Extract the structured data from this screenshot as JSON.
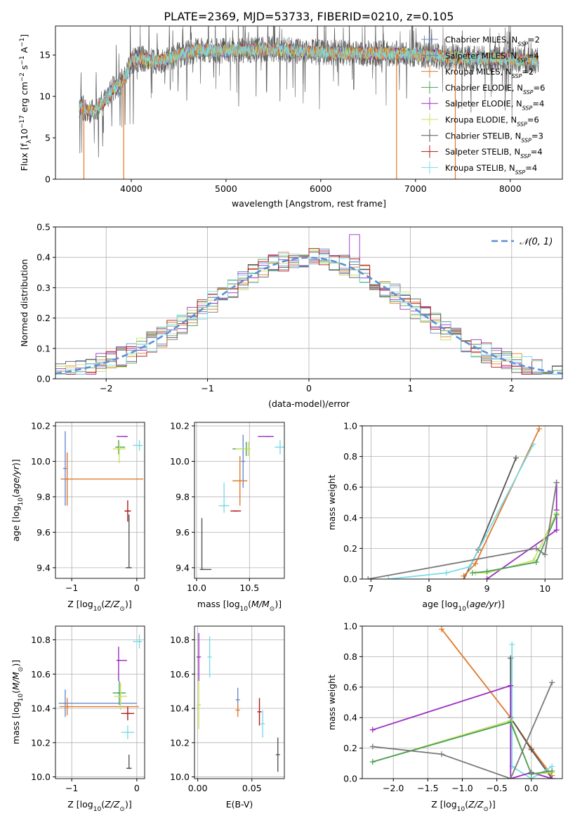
{
  "figure_title": "PLATE=2369, MJD=53733, FIBERID=0210, z=0.105",
  "models": [
    {
      "imf": "Chabrier",
      "lib": "MILES",
      "nssp": "2",
      "color": "#6a8ad0"
    },
    {
      "imf": "Salpeter",
      "lib": "MILES",
      "nssp": "4",
      "color": "#7a7a7a"
    },
    {
      "imf": "Kroupa",
      "lib": "MILES",
      "nssp": "2",
      "color": "#e07a2c"
    },
    {
      "imf": "Chabrier",
      "lib": "ELODIE",
      "nssp": "6",
      "color": "#4aa05a"
    },
    {
      "imf": "Salpeter",
      "lib": "ELODIE",
      "nssp": "4",
      "color": "#9a2cc0"
    },
    {
      "imf": "Kroupa",
      "lib": "ELODIE",
      "nssp": "6",
      "color": "#c9e060"
    },
    {
      "imf": "Chabrier",
      "lib": "STELIB",
      "nssp": "3",
      "color": "#555555"
    },
    {
      "imf": "Salpeter",
      "lib": "STELIB",
      "nssp": "4",
      "color": "#b01818"
    },
    {
      "imf": "Kroupa",
      "lib": "STELIB",
      "nssp": "4",
      "color": "#7adbe6"
    }
  ],
  "chart_data": [
    {
      "id": "spectrum",
      "type": "line",
      "xlabel": "wavelength [Angstrom, rest frame]",
      "ylabel": "Flux [f_λ 10^-17 erg cm^-2 s^-1 A^-1]",
      "xlim": [
        3200,
        8550
      ],
      "ylim": [
        0,
        18.5
      ],
      "xticks": [
        4000,
        5000,
        6000,
        7000,
        8000
      ],
      "yticks": [
        0,
        5,
        10,
        15
      ],
      "legend": "right",
      "continuum": {
        "x": [
          3450,
          3600,
          3700,
          3800,
          3900,
          3950,
          4000,
          4100,
          4200,
          4300,
          4500,
          4700,
          5000,
          5500,
          6000,
          6500,
          7000,
          7500,
          8000,
          8300
        ],
        "y": [
          8.8,
          8.2,
          9.2,
          10.8,
          11.8,
          12.6,
          14.3,
          14.6,
          14.3,
          14.2,
          15.0,
          15.6,
          15.5,
          15.7,
          15.3,
          15.2,
          15.1,
          14.6,
          14.5,
          14.3
        ]
      },
      "drops_to_zero": [
        {
          "series": 2,
          "x": [
            3500,
            3920,
            6800,
            7420
          ]
        }
      ]
    },
    {
      "id": "residual-hist",
      "type": "bar",
      "xlabel": "(data-model)/error",
      "ylabel": "Normed distribution",
      "xlim": [
        -2.5,
        2.5
      ],
      "ylim": [
        0,
        0.5
      ],
      "xticks": [
        -2,
        -1,
        0,
        1,
        2
      ],
      "yticks": [
        0.0,
        0.1,
        0.2,
        0.3,
        0.4,
        0.5
      ],
      "bin_edges_start": -2.5,
      "bin_width": 0.1,
      "reference": {
        "name": "𝒩(0, 1)",
        "mean": 0,
        "sigma": 1,
        "color": "#5b8fd8",
        "style": "dashed"
      },
      "legend": "top-right"
    },
    {
      "id": "z-age",
      "type": "scatter",
      "xlabel": "Z [log10(Z/Z⊙)]",
      "ylabel": "age [log10(age/yr)]",
      "xlim": [
        -1.25,
        0.12
      ],
      "ylim": [
        9.34,
        10.22
      ],
      "xticks": [
        -1,
        0
      ],
      "yticks": [
        9.4,
        9.6,
        9.8,
        10.0,
        10.2
      ],
      "points": [
        {
          "s": 0,
          "x": -1.1,
          "y": 9.96,
          "xerr": [
            0,
            0
          ],
          "yerr": [
            0.21,
            0.21
          ]
        },
        {
          "s": 2,
          "x": -1.07,
          "y": 9.9,
          "xerr": [
            0.1,
            1.17
          ],
          "yerr": [
            0.15,
            0.15
          ]
        },
        {
          "s": 4,
          "x": -0.18,
          "y": 10.14,
          "xerr": [
            0.13,
            0.04
          ],
          "yerr": [
            0,
            0
          ]
        },
        {
          "s": 3,
          "x": -0.28,
          "y": 10.08,
          "xerr": [
            0.05,
            0.1
          ],
          "yerr": [
            0.04,
            0.04
          ]
        },
        {
          "s": 5,
          "x": -0.27,
          "y": 10.07,
          "xerr": [
            0.1,
            0.1
          ],
          "yerr": [
            0.08,
            0.04
          ]
        },
        {
          "s": 8,
          "x": 0.04,
          "y": 10.09,
          "xerr": [
            0.1,
            0.05
          ],
          "yerr": [
            0.03,
            0.03
          ]
        },
        {
          "s": 7,
          "x": -0.14,
          "y": 9.72,
          "xerr": [
            0.05,
            0.05
          ],
          "yerr": [
            0.06,
            0.06
          ]
        },
        {
          "s": 6,
          "x": -0.12,
          "y": 9.4,
          "xerr": [
            0.05,
            0.04
          ],
          "yerr": [
            0,
            0.3
          ]
        }
      ]
    },
    {
      "id": "mass-age",
      "type": "scatter",
      "xlabel": "mass [log10(M/M⊙)]",
      "ylabel": "",
      "xlim": [
        9.98,
        10.83
      ],
      "ylim": [
        9.34,
        10.22
      ],
      "xticks": [
        10.0,
        10.5
      ],
      "yticks": [
        9.4,
        9.6,
        9.8,
        10.0,
        10.2
      ],
      "points": [
        {
          "s": 0,
          "x": 10.44,
          "y": 10.0,
          "xerr": [
            0,
            0
          ],
          "yerr": [
            0.15,
            0.15
          ]
        },
        {
          "s": 2,
          "x": 10.41,
          "y": 9.89,
          "xerr": [
            0.07,
            0.07
          ],
          "yerr": [
            0.14,
            0.14
          ]
        },
        {
          "s": 4,
          "x": 10.68,
          "y": 10.14,
          "xerr": [
            0.1,
            0.05
          ],
          "yerr": [
            0,
            0
          ]
        },
        {
          "s": 3,
          "x": 10.47,
          "y": 10.07,
          "xerr": [
            0.13,
            0.03
          ],
          "yerr": [
            0.04,
            0.04
          ]
        },
        {
          "s": 5,
          "x": 10.49,
          "y": 10.07,
          "xerr": [
            0.12,
            0.02
          ],
          "yerr": [
            0.04,
            0.04
          ]
        },
        {
          "s": 8,
          "x": 10.79,
          "y": 10.08,
          "xerr": [
            0.05,
            0.05
          ],
          "yerr": [
            0.04,
            0.04
          ]
        },
        {
          "s": 7,
          "x": 10.37,
          "y": 9.72,
          "xerr": [
            0.05,
            0.05
          ],
          "yerr": [
            0,
            0
          ]
        },
        {
          "s": 8,
          "x": 10.26,
          "y": 9.75,
          "xerr": [
            0.05,
            0.05
          ],
          "yerr": [
            0.04,
            0.13
          ]
        },
        {
          "s": 6,
          "x": 10.05,
          "y": 9.39,
          "xerr": [
            0,
            0.09
          ],
          "yerr": [
            0,
            0.29
          ]
        }
      ]
    },
    {
      "id": "age-weight",
      "type": "line",
      "xlabel": "age [log10(age/yr)]",
      "ylabel": "mass weight",
      "xlim": [
        6.85,
        10.3
      ],
      "ylim": [
        0,
        1.0
      ],
      "xticks": [
        7,
        8,
        9,
        10
      ],
      "yticks": [
        0.0,
        0.2,
        0.4,
        0.6,
        0.8,
        1.0
      ],
      "series": [
        {
          "s": 6,
          "x": [
            8.6,
            8.85,
            9.5
          ],
          "y": [
            0.0,
            0.19,
            0.79
          ]
        },
        {
          "s": 2,
          "x": [
            8.6,
            8.8,
            9.9
          ],
          "y": [
            0.02,
            0.1,
            0.98
          ]
        },
        {
          "s": 8,
          "x": [
            7.3,
            8.3,
            8.7,
            9.8
          ],
          "y": [
            0.0,
            0.04,
            0.08,
            0.88
          ]
        },
        {
          "s": 4,
          "x": [
            9.0,
            10.2,
            10.2,
            10.2
          ],
          "y": [
            0.0,
            0.32,
            0.45,
            0.63
          ]
        },
        {
          "s": 5,
          "x": [
            8.8,
            9.0,
            9.8,
            10.2
          ],
          "y": [
            0.04,
            0.04,
            0.12,
            0.43
          ]
        },
        {
          "s": 3,
          "x": [
            8.75,
            9.0,
            9.85,
            10.2
          ],
          "y": [
            0.04,
            0.05,
            0.11,
            0.42
          ]
        },
        {
          "s": 1,
          "x": [
            6.95,
            9.85,
            10.0,
            10.2
          ],
          "y": [
            0.0,
            0.2,
            0.16,
            0.63
          ]
        }
      ]
    },
    {
      "id": "z-mass",
      "type": "scatter",
      "xlabel": "Z [log10(Z/Z⊙)]",
      "ylabel": "mass [log10(M/M⊙)]",
      "xlim": [
        -1.25,
        0.12
      ],
      "ylim": [
        9.99,
        10.88
      ],
      "xticks": [
        -1,
        0
      ],
      "yticks": [
        10.0,
        10.2,
        10.4,
        10.6,
        10.8
      ],
      "points": [
        {
          "s": 0,
          "x": -1.1,
          "y": 10.43,
          "xerr": [
            0.1,
            1.1
          ],
          "yerr": [
            0.08,
            0.08
          ]
        },
        {
          "s": 2,
          "x": -1.07,
          "y": 10.41,
          "xerr": [
            0.12,
            1.1
          ],
          "yerr": [
            0.05,
            0.05
          ]
        },
        {
          "s": 4,
          "x": -0.28,
          "y": 10.68,
          "xerr": [
            0.0,
            0.13
          ],
          "yerr": [
            0.12,
            0.08
          ]
        },
        {
          "s": 3,
          "x": -0.27,
          "y": 10.49,
          "xerr": [
            0.1,
            0.1
          ],
          "yerr": [
            0.07,
            0.07
          ]
        },
        {
          "s": 5,
          "x": -0.25,
          "y": 10.47,
          "xerr": [
            0.1,
            0.1
          ],
          "yerr": [
            0.08,
            0.08
          ]
        },
        {
          "s": 8,
          "x": 0.04,
          "y": 10.79,
          "xerr": [
            0.1,
            0.04
          ],
          "yerr": [
            0.04,
            0.04
          ]
        },
        {
          "s": 7,
          "x": -0.14,
          "y": 10.37,
          "xerr": [
            0.1,
            0.1
          ],
          "yerr": [
            0.04,
            0.04
          ]
        },
        {
          "s": 8,
          "x": -0.14,
          "y": 10.26,
          "xerr": [
            0.1,
            0.1
          ],
          "yerr": [
            0.04,
            0.04
          ]
        },
        {
          "s": 6,
          "x": -0.12,
          "y": 10.05,
          "xerr": [
            0.04,
            0.04
          ],
          "yerr": [
            0,
            0.08
          ]
        }
      ]
    },
    {
      "id": "ebv-mass",
      "type": "scatter",
      "xlabel": "E(B-V)",
      "ylabel": "",
      "xlim": [
        -0.003,
        0.08
      ],
      "ylim": [
        9.99,
        10.88
      ],
      "xticks": [
        0.0,
        0.05
      ],
      "yticks": [
        10.0,
        10.2,
        10.4,
        10.6,
        10.8
      ],
      "points": [
        {
          "s": 4,
          "x": 0.001,
          "y": 10.7,
          "xerr": [
            0,
            0
          ],
          "yerr": [
            0.14,
            0.14
          ]
        },
        {
          "s": 8,
          "x": 0.011,
          "y": 10.7,
          "xerr": [
            0,
            0
          ],
          "yerr": [
            0.12,
            0.12
          ]
        },
        {
          "s": 5,
          "x": 0.001,
          "y": 10.42,
          "xerr": [
            0,
            0
          ],
          "yerr": [
            0.14,
            0.14
          ]
        },
        {
          "s": 0,
          "x": 0.037,
          "y": 10.45,
          "xerr": [
            0,
            0
          ],
          "yerr": [
            0.07,
            0.07
          ]
        },
        {
          "s": 2,
          "x": 0.037,
          "y": 10.39,
          "xerr": [
            0,
            0
          ],
          "yerr": [
            0.04,
            0.04
          ]
        },
        {
          "s": 7,
          "x": 0.057,
          "y": 10.38,
          "xerr": [
            0,
            0
          ],
          "yerr": [
            0.08,
            0.08
          ]
        },
        {
          "s": 8,
          "x": 0.06,
          "y": 10.31,
          "xerr": [
            0,
            0
          ],
          "yerr": [
            0.08,
            0.08
          ]
        },
        {
          "s": 6,
          "x": 0.074,
          "y": 10.13,
          "xerr": [
            0,
            0
          ],
          "yerr": [
            0.1,
            0.1
          ]
        }
      ]
    },
    {
      "id": "z-weight",
      "type": "line",
      "xlabel": "Z [log10(Z/Z⊙)]",
      "ylabel": "mass weight",
      "xlim": [
        -2.45,
        0.45
      ],
      "ylim": [
        0,
        1.0
      ],
      "xticks": [
        -2.0,
        -1.5,
        -1.0,
        -0.5,
        0.0
      ],
      "yticks": [
        0.0,
        0.2,
        0.4,
        0.6,
        0.8,
        1.0
      ],
      "series": [
        {
          "s": 2,
          "x": [
            -1.3,
            -0.3,
            0.0,
            0.3
          ],
          "y": [
            0.98,
            0.4,
            0.2,
            0.02
          ]
        },
        {
          "s": 6,
          "x": [
            -0.3,
            -0.3,
            0.0,
            0.3
          ],
          "y": [
            0.79,
            0.4,
            0.19,
            0.0
          ]
        },
        {
          "s": 8,
          "x": [
            -0.28,
            -0.28,
            0.0,
            0.3
          ],
          "y": [
            0.88,
            0.08,
            0.0,
            0.08
          ]
        },
        {
          "s": 4,
          "x": [
            -2.3,
            -0.3,
            -0.3,
            0.0,
            0.3
          ],
          "y": [
            0.32,
            0.61,
            0.0,
            0.04,
            0.0
          ]
        },
        {
          "s": 5,
          "x": [
            -2.3,
            -0.3,
            0.0,
            0.3
          ],
          "y": [
            0.11,
            0.38,
            0.03,
            0.04
          ]
        },
        {
          "s": 3,
          "x": [
            -2.3,
            -0.3,
            0.0,
            0.3
          ],
          "y": [
            0.11,
            0.37,
            0.03,
            0.05
          ]
        },
        {
          "s": 1,
          "x": [
            -2.3,
            -1.3,
            -0.3,
            0.3
          ],
          "y": [
            0.21,
            0.16,
            0.0,
            0.63
          ]
        }
      ]
    }
  ]
}
